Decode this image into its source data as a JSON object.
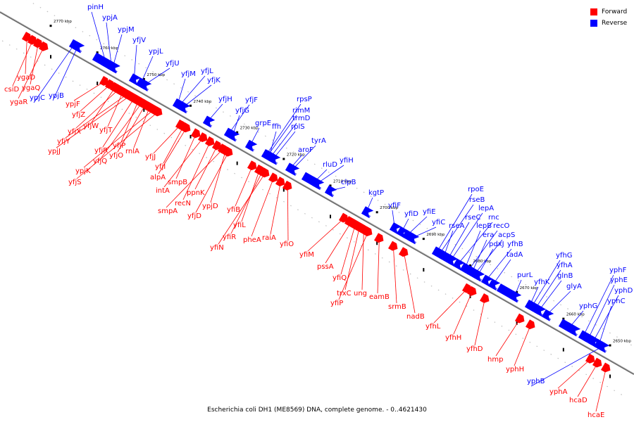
{
  "title": "Escherichia coli DH1 (ME8569) DNA, complete genome. - 0..4621430",
  "legend": [
    {
      "label": "Forward",
      "color": "#ff0000"
    },
    {
      "label": "Reverse",
      "color": "#0000ff"
    }
  ],
  "colors": {
    "forward": "#ff0000",
    "reverse": "#0000ff",
    "backbone": "#888888"
  },
  "ticks": [
    {
      "label": "2770 kbp",
      "kbp": 2770
    },
    {
      "label": "2760 kbp",
      "kbp": 2760
    },
    {
      "label": "2750 kbp",
      "kbp": 2750
    },
    {
      "label": "2740 kbp",
      "kbp": 2740
    },
    {
      "label": "2730 kbp",
      "kbp": 2730
    },
    {
      "label": "2720 kbp",
      "kbp": 2720
    },
    {
      "label": "2710 kbp",
      "kbp": 2710
    },
    {
      "label": "2700 kbp",
      "kbp": 2700
    },
    {
      "label": "2690 kbp",
      "kbp": 2690
    },
    {
      "label": "2680 kbp",
      "kbp": 2680
    },
    {
      "label": "2670 kbp",
      "kbp": 2670
    },
    {
      "label": "2660 kbp",
      "kbp": 2660
    },
    {
      "label": "2650 kbp",
      "kbp": 2650
    }
  ],
  "forward_genes": [
    "ygaD",
    "csiD",
    "ygaQ",
    "ygaR",
    "ypjF",
    "yfjZ",
    "yfjW",
    "yfjX",
    "yfjT",
    "yfjY",
    "ypjJ",
    "yfjR",
    "yfjP",
    "yfjQ",
    "yfjO",
    "rnlA",
    "ypjK",
    "yfjS",
    "yfjJ",
    "yfjI",
    "alpA",
    "smpB",
    "intA",
    "recN",
    "ppnK",
    "smpA",
    "ypjD",
    "yfjD",
    "yfiB",
    "yfiL",
    "yfiR",
    "yfiN",
    "pheA",
    "raiA",
    "yfiO",
    "yfiM",
    "pssA",
    "yfiQ",
    "trxC",
    "ung",
    "yfiP",
    "eamB",
    "srmB",
    "nadB",
    "yfhL",
    "yfhH",
    "yfhD",
    "hmp",
    "yphH",
    "yphA",
    "hcaD",
    "hcaE"
  ],
  "reverse_genes": [
    "pinH",
    "ypjA",
    "ypjM",
    "yfjV",
    "ypjL",
    "yfjU",
    "yfjM",
    "yfjL",
    "yfjK",
    "ypjC",
    "ypjB",
    "yfjH",
    "yfjF",
    "yfjG",
    "grpE",
    "rpsP",
    "rimM",
    "trmD",
    "rplS",
    "ffh",
    "tyrA",
    "aroF",
    "yfiH",
    "rluD",
    "clpB",
    "kgtP",
    "yfiF",
    "yfiD",
    "yfiE",
    "yfiC",
    "rpoE",
    "rseB",
    "lepA",
    "rseC",
    "rnc",
    "rseA",
    "lepB",
    "recO",
    "era",
    "acpS",
    "pdxJ",
    "yfhB",
    "tadA",
    "yfhG",
    "yfhA",
    "purL",
    "yfhK",
    "glnB",
    "glyA",
    "yphF",
    "yphE",
    "yphD",
    "yphG",
    "yphC",
    "yphB"
  ]
}
